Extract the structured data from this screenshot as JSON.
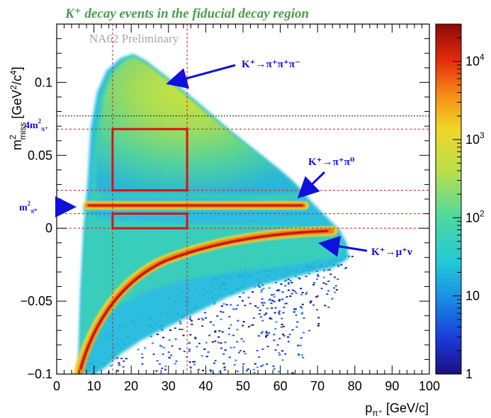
{
  "title": "K⁺ decay events in the fiducial decay region",
  "watermark": "NA62 Preliminary",
  "colors": {
    "title": "#4e9a4e",
    "annotation": "#1010dd",
    "box": "#e01010",
    "dashed": "#e01010",
    "dotted": "#1a1a1a"
  },
  "chart_data": {
    "type": "heatmap",
    "xlabel_main": "p",
    "xlabel_sub": "π⁺",
    "xlabel_unit": "[GeV/c]",
    "ylabel_main": "m",
    "ylabel_sup": "2",
    "ylabel_sub": "miss",
    "ylabel_unit": "[GeV",
    "xlim": [
      0,
      100
    ],
    "ylim": [
      -0.1,
      0.14
    ],
    "xticks": [
      0,
      10,
      20,
      30,
      40,
      50,
      60,
      70,
      80,
      90,
      100
    ],
    "yticks": [
      -0.1,
      -0.05,
      0,
      0.05,
      0.1
    ],
    "ytick_labels": [
      "−0.1",
      "−0.05",
      "0",
      "0.05",
      "0.1"
    ],
    "colorbar": {
      "scale": "log",
      "range": [
        1,
        30000
      ],
      "tick_labels": [
        "1",
        "10",
        "10²",
        "10³",
        "10⁴"
      ],
      "tick_values": [
        1,
        10,
        100,
        1000,
        10000
      ]
    },
    "bands": [
      {
        "label": "K⁺→π⁺π⁺π⁻",
        "description": "three-pion lobe"
      },
      {
        "label": "K⁺→π⁺π⁰",
        "y": 0.018
      },
      {
        "label": "K⁺→μ⁺ν",
        "description": "muon band"
      }
    ],
    "signal_regions": [
      {
        "x": [
          15,
          35
        ],
        "y": [
          0.0,
          0.01
        ]
      },
      {
        "x": [
          15,
          35
        ],
        "y": [
          0.026,
          0.068
        ]
      }
    ],
    "dashed_lines": {
      "x": [
        15,
        35
      ],
      "y": [
        0.0,
        0.01,
        0.026,
        0.068
      ]
    },
    "dotted_lines": {
      "y": [
        0.077
      ]
    },
    "y_markers": [
      {
        "label_main": "4m",
        "label_sup": "2",
        "label_sub": "π⁺",
        "y": 0.077
      },
      {
        "label_main": "m",
        "label_sup": "2",
        "label_sub": "π⁰",
        "y": 0.018
      }
    ]
  }
}
